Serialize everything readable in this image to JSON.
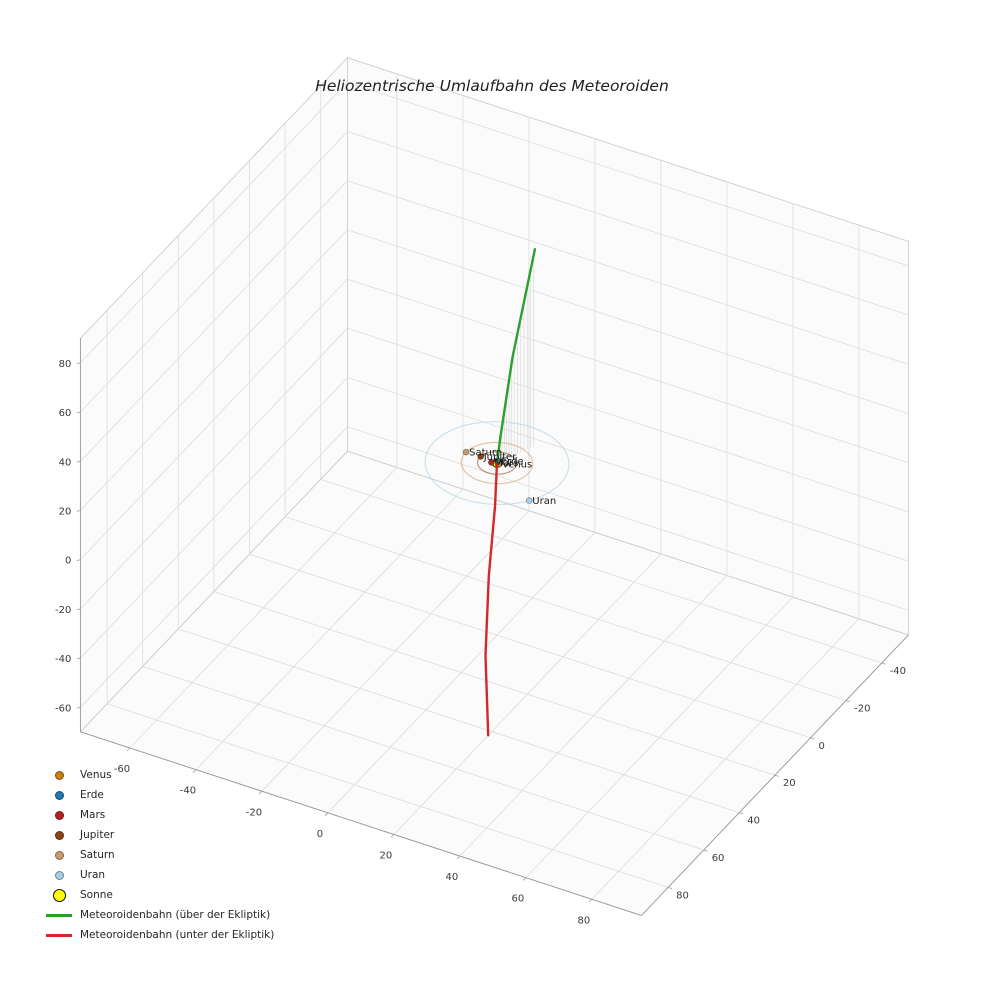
{
  "chart_data": {
    "type": "line",
    "subtype": "3d-orbit-plot",
    "title": "Heliozentrische Umlaufbahn des Meteoroiden",
    "view": {
      "elev_deg": 30,
      "azim_deg": -60
    },
    "axes": {
      "x": {
        "range": [
          -75,
          95
        ],
        "ticks": [
          -60,
          -40,
          -20,
          0,
          20,
          40,
          60,
          80
        ]
      },
      "y": {
        "range": [
          -55,
          95
        ],
        "ticks": [
          -40,
          -20,
          0,
          20,
          40,
          60,
          80
        ]
      },
      "z": {
        "range": [
          -70,
          90
        ],
        "ticks": [
          -60,
          -40,
          -20,
          0,
          20,
          40,
          60,
          80
        ]
      }
    },
    "style": {
      "background": "#ffffff",
      "pane_fill": "#fbfbfb",
      "grid_color": "#dcdcdc",
      "edge_color": "#c8c8c8",
      "spine_color": "#9a9a9a",
      "tick_label_color": "#3a3a3a",
      "planet_label_color": "#1a1a1a"
    },
    "sun": {
      "label": "Sonne",
      "color": "#ffff00",
      "edge_color": "#000000",
      "position": [
        0,
        0,
        0
      ]
    },
    "planets": [
      {
        "name": "Venus",
        "orbit_radius_au": 0.72,
        "color": "#c77f0e",
        "angle_deg": 10
      },
      {
        "name": "Erde",
        "orbit_radius_au": 1.0,
        "color": "#1f77b4",
        "angle_deg": 255
      },
      {
        "name": "Mars",
        "orbit_radius_au": 1.52,
        "color": "#b22222",
        "angle_deg": 160
      },
      {
        "name": "Jupiter",
        "orbit_radius_au": 5.2,
        "color": "#8b4513",
        "angle_deg": 185
      },
      {
        "name": "Saturn",
        "orbit_radius_au": 9.54,
        "color": "#c89b6d",
        "angle_deg": 182
      },
      {
        "name": "Uran",
        "orbit_radius_au": 19.19,
        "color": "#a6cee3",
        "angle_deg": 35
      }
    ],
    "meteoroid": {
      "above_ecliptic": {
        "label": "Meteoroidenbahn (über der Ekliptik)",
        "color": "#2ca02c",
        "points": [
          [
            5,
            -12,
            80
          ],
          [
            2,
            -5,
            40
          ],
          [
            0.5,
            -1,
            10
          ],
          [
            0,
            0,
            0
          ]
        ]
      },
      "below_ecliptic": {
        "label": "Meteoroidenbahn (unter der Ekliptik)",
        "color": "#d62728",
        "points": [
          [
            0,
            0,
            0
          ],
          [
            1,
            3,
            -15
          ],
          [
            4,
            12,
            -35
          ],
          [
            10,
            25,
            -55
          ],
          [
            20,
            42,
            -70
          ]
        ]
      },
      "stem_color": "#dcdcdc",
      "stem_count": 14
    }
  }
}
